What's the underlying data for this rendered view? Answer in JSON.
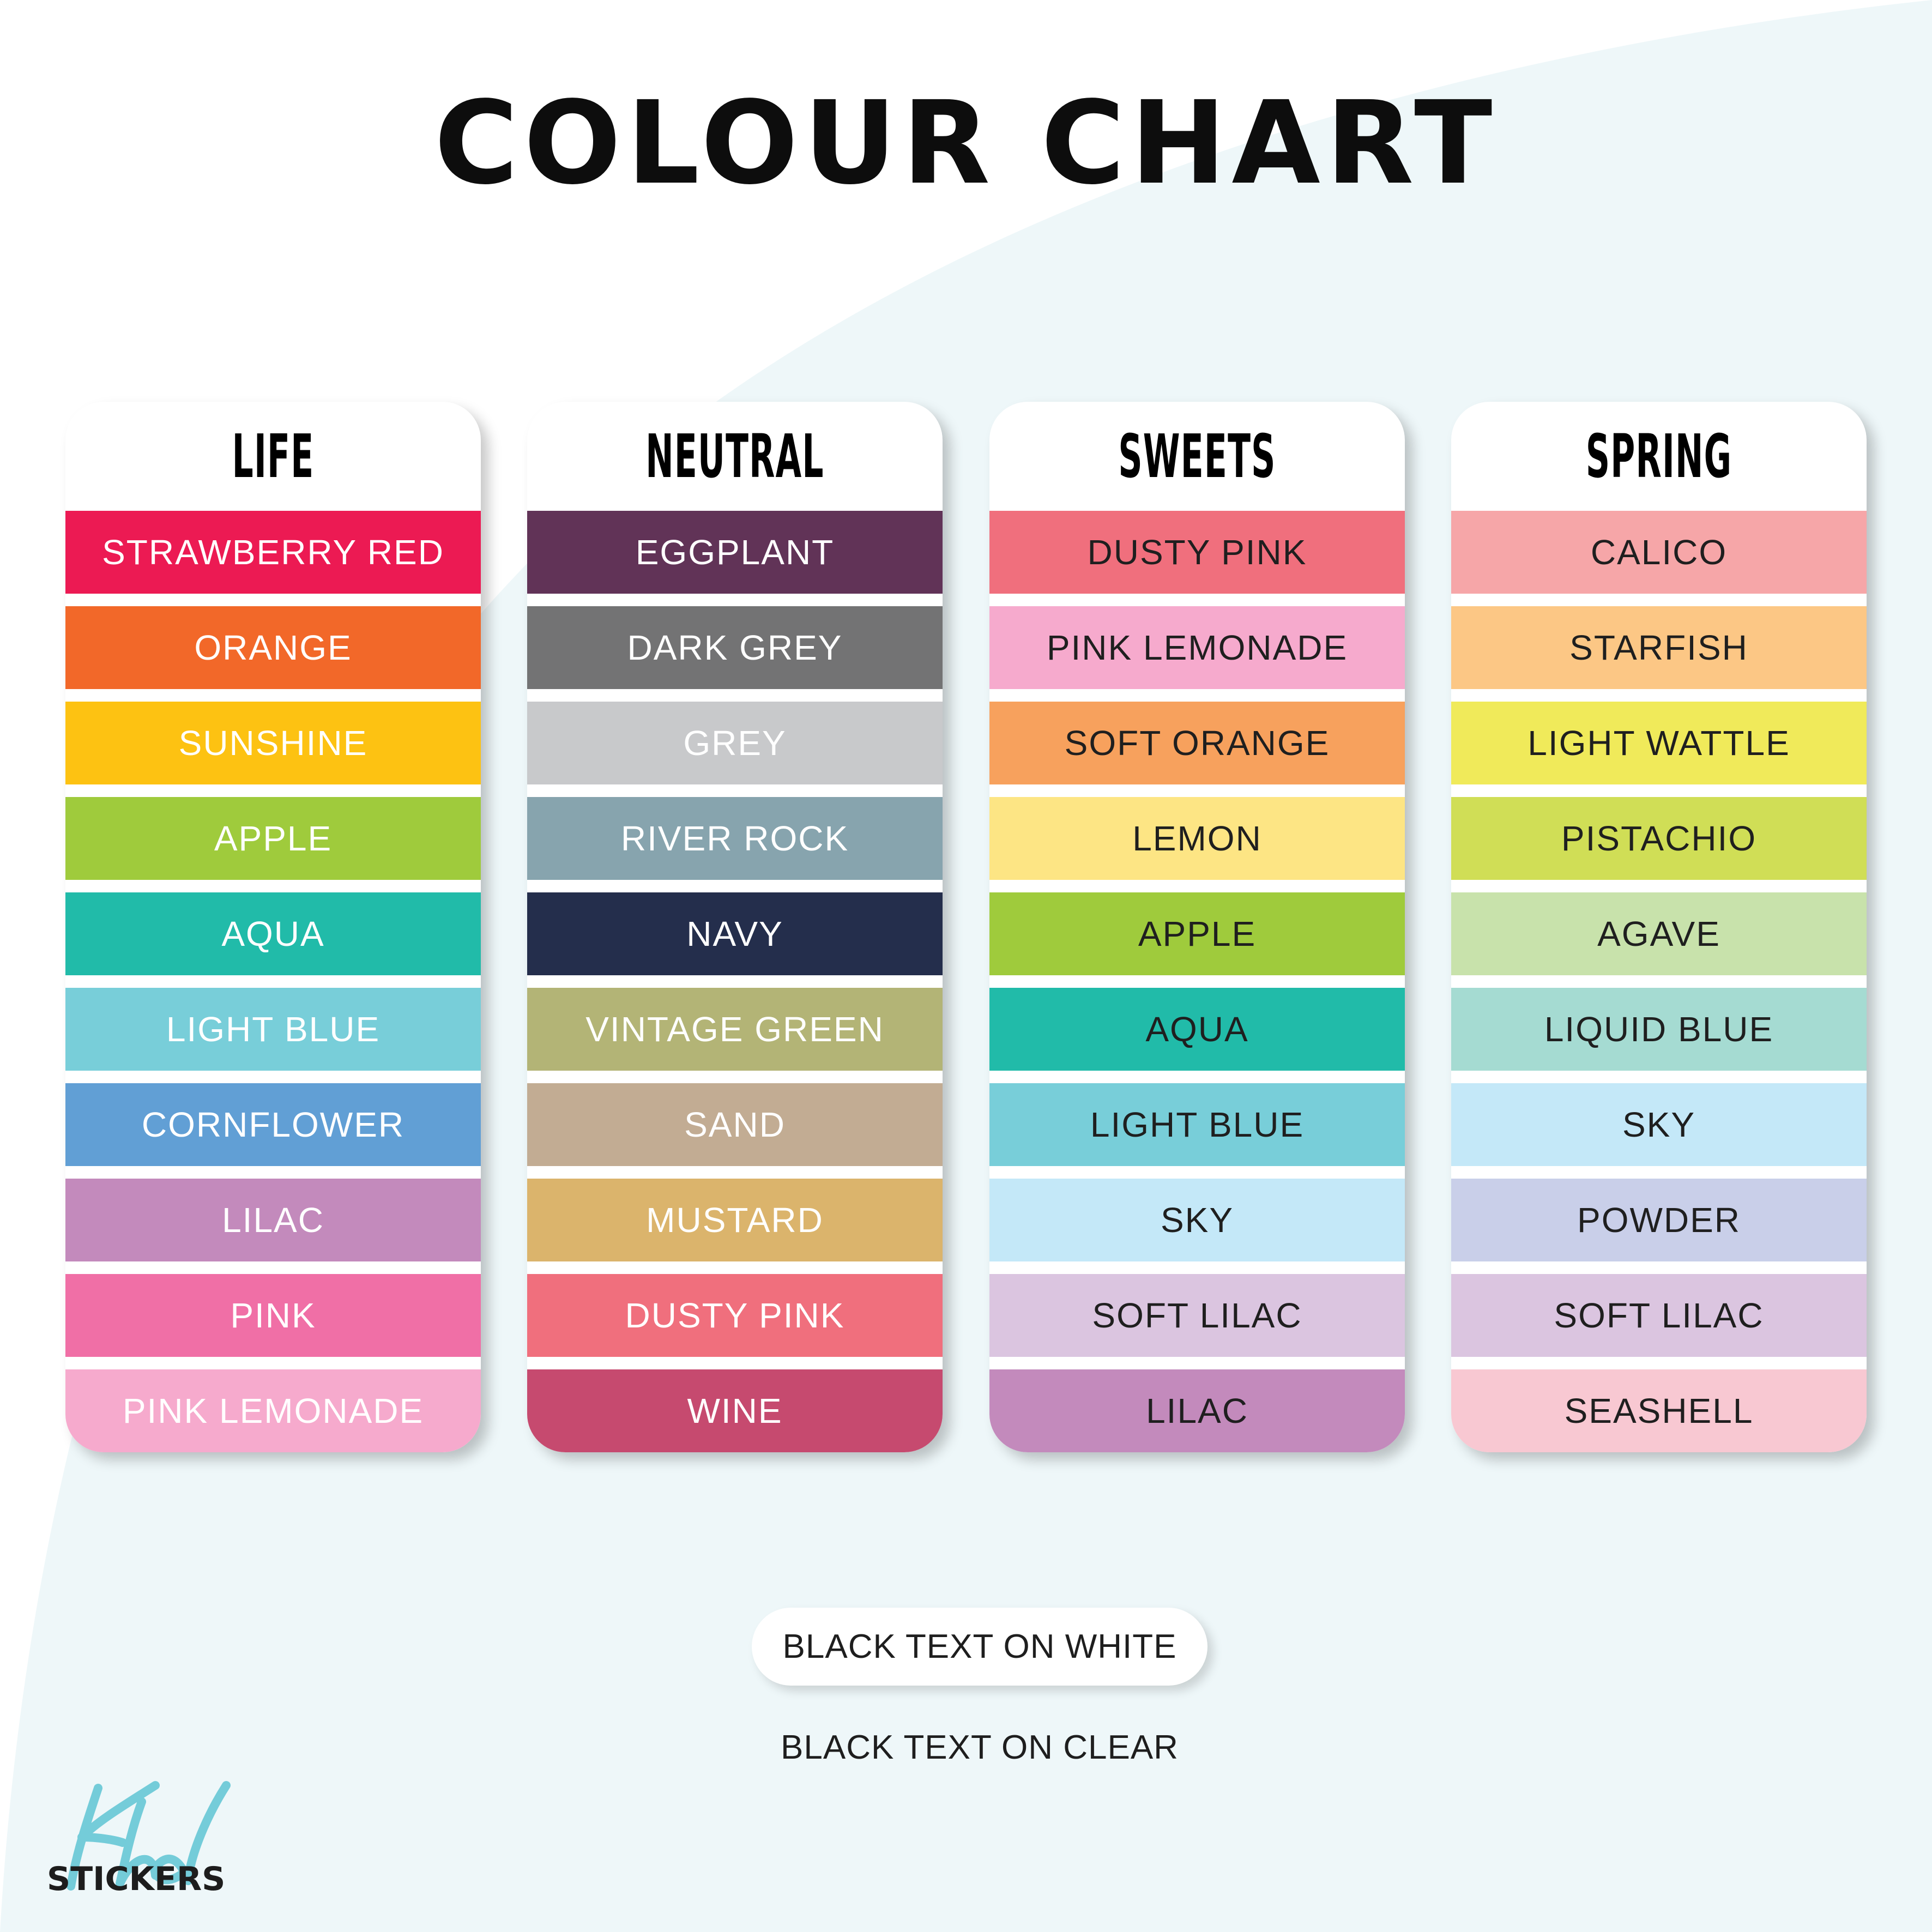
{
  "title": "COLOUR CHART",
  "colors": {
    "background_curve": "#eef7f9",
    "logo_accent": "#74ccd9"
  },
  "columns": [
    {
      "heading": "LIFE",
      "text_color": "#ffffff",
      "items": [
        {
          "label": "STRAWBERRY RED",
          "color": "#ec1a53"
        },
        {
          "label": "ORANGE",
          "color": "#f26829"
        },
        {
          "label": "SUNSHINE",
          "color": "#fdc212"
        },
        {
          "label": "APPLE",
          "color": "#9fcb3c"
        },
        {
          "label": "AQUA",
          "color": "#21bba9"
        },
        {
          "label": "LIGHT BLUE",
          "color": "#78ced9"
        },
        {
          "label": "CORNFLOWER",
          "color": "#619fd5"
        },
        {
          "label": "LILAC",
          "color": "#c38abc"
        },
        {
          "label": "PINK",
          "color": "#f06fa6"
        },
        {
          "label": "PINK LEMONADE",
          "color": "#f6aacd"
        }
      ]
    },
    {
      "heading": "NEUTRAL",
      "text_color": "#ffffff",
      "items": [
        {
          "label": "EGGPLANT",
          "color": "#613357"
        },
        {
          "label": "DARK GREY",
          "color": "#737374"
        },
        {
          "label": "GREY",
          "color": "#c8c9cb"
        },
        {
          "label": "RIVER ROCK",
          "color": "#87a4ae"
        },
        {
          "label": "NAVY",
          "color": "#242e4c"
        },
        {
          "label": "VINTAGE GREEN",
          "color": "#b3b476"
        },
        {
          "label": "SAND",
          "color": "#c2ac93"
        },
        {
          "label": "MUSTARD",
          "color": "#dbb46c"
        },
        {
          "label": "DUSTY PINK",
          "color": "#f06f7d"
        },
        {
          "label": "WINE",
          "color": "#c64a6f"
        }
      ]
    },
    {
      "heading": "SWEETS",
      "text_color": "#1f1f1f",
      "items": [
        {
          "label": "DUSTY PINK",
          "color": "#f06f7d"
        },
        {
          "label": "PINK LEMONADE",
          "color": "#f6aacd"
        },
        {
          "label": "SOFT ORANGE",
          "color": "#f7a15d"
        },
        {
          "label": "LEMON",
          "color": "#fde584"
        },
        {
          "label": "APPLE",
          "color": "#9fcb3c"
        },
        {
          "label": "AQUA",
          "color": "#21bba9"
        },
        {
          "label": "LIGHT BLUE",
          "color": "#78ced9"
        },
        {
          "label": "SKY",
          "color": "#c4e8f8"
        },
        {
          "label": "SOFT LILAC",
          "color": "#dbc5e0"
        },
        {
          "label": "LILAC",
          "color": "#c38abc"
        }
      ]
    },
    {
      "heading": "SPRING",
      "text_color": "#1f1f1f",
      "items": [
        {
          "label": "CALICO",
          "color": "#f6a6a8"
        },
        {
          "label": "STARFISH",
          "color": "#fcc785"
        },
        {
          "label": "LIGHT WATTLE",
          "color": "#f0ea5a"
        },
        {
          "label": "PISTACHIO",
          "color": "#d0de56"
        },
        {
          "label": "AGAVE",
          "color": "#c8e2ab"
        },
        {
          "label": "LIQUID BLUE",
          "color": "#a5dbd2"
        },
        {
          "label": "SKY",
          "color": "#c4e8f8"
        },
        {
          "label": "POWDER",
          "color": "#c9cfe9"
        },
        {
          "label": "SOFT LILAC",
          "color": "#dbc5e0"
        },
        {
          "label": "SEASHELL",
          "color": "#f8c8d2"
        }
      ]
    }
  ],
  "legend": {
    "white": "BLACK TEXT ON WHITE",
    "clear": "BLACK TEXT ON CLEAR"
  },
  "logo": {
    "script": "Khd",
    "text": "STICKERS"
  }
}
